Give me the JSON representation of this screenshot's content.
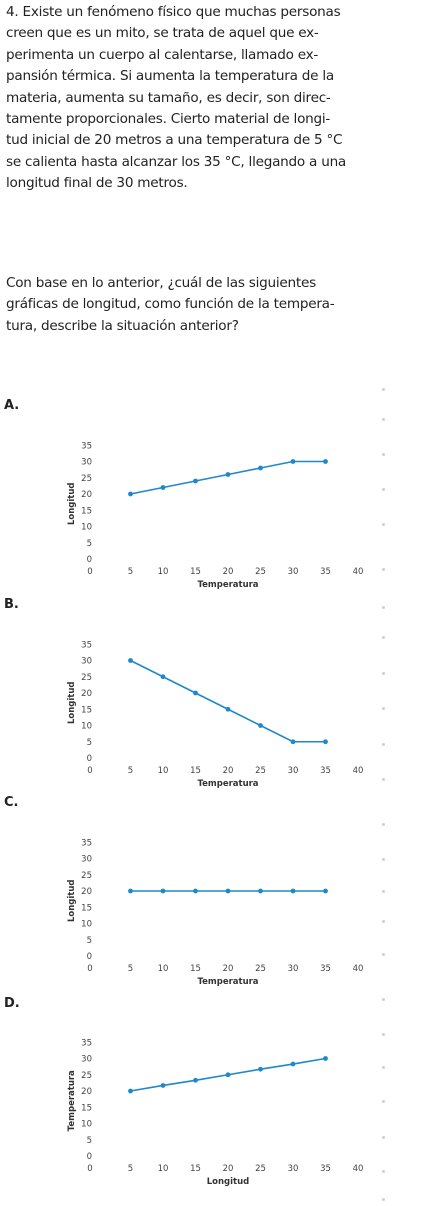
{
  "question": {
    "lines": [
      "4. Existe un fenómeno físico que muchas personas",
      "creen que es un mito, se trata de aquel que ex-",
      "perimenta un cuerpo al calentarse, llamado ex-",
      "pansión térmica. Si aumenta la temperatura de la",
      "materia, aumenta su tamaño, es decir, son direc-",
      "tamente proporcionales. Cierto material de longi-",
      "tud inicial de 20 metros a una temperatura de 5 °C",
      "se calienta hasta alcanzar los 35 °C, llegando a una",
      "longitud final de 30 metros."
    ],
    "prompt_lines": [
      "Con base en lo anterior, ¿cuál de las siguientes",
      "gráficas de longitud, como función de la tempera-",
      "tura, describe la situación anterior?"
    ]
  },
  "chart_data": [
    {
      "type": "line",
      "label": "A.",
      "xlabel": "Temperatura",
      "ylabel": "Longitud",
      "xticks": [
        0,
        5,
        10,
        15,
        20,
        25,
        30,
        35,
        40
      ],
      "yticks": [
        0,
        5,
        10,
        15,
        20,
        25,
        30,
        35
      ],
      "xlim": [
        0,
        40
      ],
      "ylim": [
        0,
        35
      ],
      "x": [
        5,
        10,
        15,
        20,
        25,
        30,
        35
      ],
      "y": [
        20,
        22,
        24,
        26,
        28,
        30,
        30
      ],
      "color": "#1e88c8"
    },
    {
      "type": "line",
      "label": "B.",
      "xlabel": "Temperatura",
      "ylabel": "Longitud",
      "xticks": [
        0,
        5,
        10,
        15,
        20,
        25,
        30,
        35,
        40
      ],
      "yticks": [
        0,
        5,
        10,
        15,
        20,
        25,
        30,
        35
      ],
      "xlim": [
        0,
        40
      ],
      "ylim": [
        0,
        35
      ],
      "x": [
        5,
        10,
        15,
        20,
        25,
        30,
        35
      ],
      "y": [
        30,
        25,
        20,
        15,
        10,
        5,
        5
      ],
      "color": "#1e88c8"
    },
    {
      "type": "line",
      "label": "C.",
      "xlabel": "Temperatura",
      "ylabel": "Longitud",
      "xticks": [
        0,
        5,
        10,
        15,
        20,
        25,
        30,
        35,
        40
      ],
      "yticks": [
        0,
        5,
        10,
        15,
        20,
        25,
        30,
        35
      ],
      "xlim": [
        0,
        40
      ],
      "ylim": [
        0,
        35
      ],
      "x": [
        5,
        10,
        15,
        20,
        25,
        30,
        35
      ],
      "y": [
        20,
        20,
        20,
        20,
        20,
        20,
        20
      ],
      "color": "#1e88c8"
    },
    {
      "type": "line",
      "label": "D.",
      "xlabel": "Longitud",
      "ylabel": "Temperatura",
      "xticks": [
        0,
        5,
        10,
        15,
        20,
        25,
        30,
        35,
        40
      ],
      "yticks": [
        0,
        5,
        10,
        15,
        20,
        25,
        30,
        35
      ],
      "xlim": [
        0,
        40
      ],
      "ylim": [
        0,
        35
      ],
      "x": [
        5,
        10,
        15,
        20,
        25,
        30,
        35
      ],
      "y": [
        20,
        21.7,
        23.3,
        25,
        26.7,
        28.3,
        30
      ],
      "color": "#1e88c8"
    }
  ]
}
